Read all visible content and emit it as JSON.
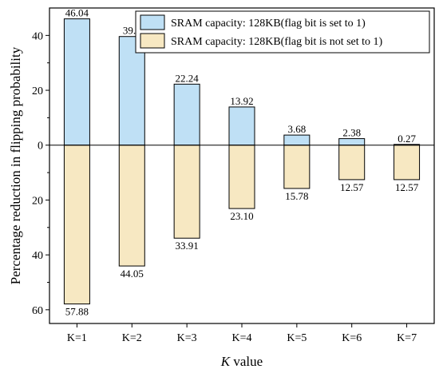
{
  "chart_data": {
    "type": "bar",
    "xlabel_italic": "K",
    "xlabel_rest": " value",
    "ylabel": "Percentage reduction in flipping probability",
    "categories": [
      "K=1",
      "K=2",
      "K=3",
      "K=4",
      "K=5",
      "K=6",
      "K=7"
    ],
    "ylim": [
      -65,
      50
    ],
    "yticks": [
      {
        "value": 40,
        "label": "40"
      },
      {
        "value": 20,
        "label": "20"
      },
      {
        "value": 0,
        "label": "0"
      },
      {
        "value": -20,
        "label": "20"
      },
      {
        "value": -40,
        "label": "40"
      },
      {
        "value": -60,
        "label": "60"
      }
    ],
    "series": [
      {
        "name": "SRAM capacity: 128KB(flag bit is set to 1)",
        "color": "#bfe0f5",
        "values": [
          46.04,
          39.6,
          22.24,
          13.92,
          3.68,
          2.38,
          0.27
        ],
        "labels": [
          "46.04",
          "39.6",
          "22.24",
          "13.92",
          "3.68",
          "2.38",
          "0.27"
        ]
      },
      {
        "name": "SRAM capacity: 128KB(flag bit is not set to 1)",
        "color": "#f7e8c2",
        "values": [
          -57.88,
          -44.05,
          -33.91,
          -23.1,
          -15.78,
          -12.57,
          -12.57
        ],
        "labels": [
          "57.88",
          "44.05",
          "33.91",
          "23.10",
          "15.78",
          "12.57",
          "12.57"
        ]
      }
    ],
    "legend_position": "top-right",
    "grid": false
  }
}
